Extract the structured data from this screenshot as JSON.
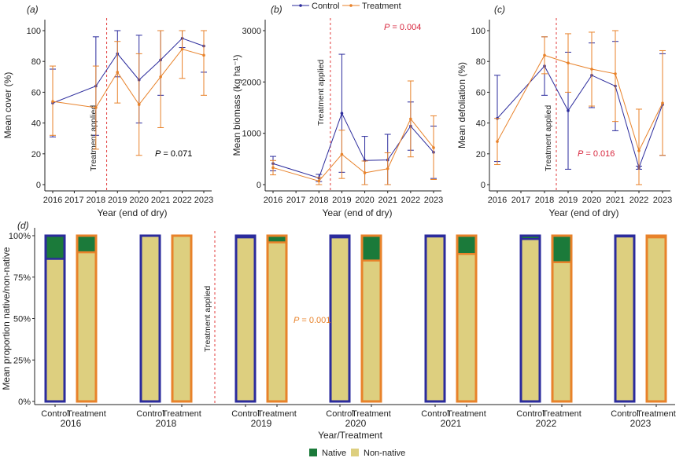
{
  "colors": {
    "control": "#2b2b9c",
    "treatment": "#e8822a",
    "significance": "#d7263d",
    "treatment_line": "#e23b3b",
    "native": "#1b7a3a",
    "nonnative": "#ddcf7f",
    "axis": "#222222"
  },
  "legend": {
    "control": "Control",
    "treatment": "Treatment"
  },
  "treatment_applied_label": "Treatment applied",
  "chart_data": [
    {
      "panel": "(a)",
      "type": "line",
      "ylabel": "Mean cover (%)",
      "xlabel": "Year (end of dry)",
      "x_ticks": [
        "2016",
        "2017",
        "2018",
        "2019",
        "2020",
        "2021",
        "2022",
        "2023"
      ],
      "y_ticks": [
        "0",
        "20",
        "40",
        "60",
        "80",
        "100"
      ],
      "ylim": [
        0,
        100
      ],
      "treatment_applied_year": 2018.5,
      "p_value": "= 0.071",
      "p_color": "black",
      "series": [
        {
          "name": "Control",
          "x": [
            2016,
            2018,
            2019,
            2020,
            2021,
            2022,
            2023
          ],
          "values": [
            53,
            64,
            85,
            68,
            81,
            95,
            90
          ],
          "err_low": [
            31,
            32,
            70,
            40,
            58,
            89,
            73
          ],
          "err_high": [
            75,
            96,
            100,
            97,
            100,
            100,
            100
          ]
        },
        {
          "name": "Treatment",
          "x": [
            2016,
            2018,
            2019,
            2020,
            2021,
            2022,
            2023
          ],
          "values": [
            54,
            50,
            73,
            52,
            70,
            88,
            84
          ],
          "err_low": [
            32,
            23,
            53,
            19,
            37,
            69,
            58
          ],
          "err_high": [
            77,
            77,
            93,
            85,
            100,
            100,
            100
          ]
        }
      ]
    },
    {
      "panel": "(b)",
      "type": "line",
      "ylabel": "Mean biomass (kg ha⁻¹)",
      "xlabel": "Year (end of dry)",
      "x_ticks": [
        "2016",
        "2017",
        "2018",
        "2019",
        "2020",
        "2021",
        "2022",
        "2023"
      ],
      "y_ticks": [
        "0",
        "1000",
        "2000",
        "3000"
      ],
      "ylim": [
        0,
        3000
      ],
      "treatment_applied_year": 2018.5,
      "p_value": "= 0.004",
      "p_color": "red",
      "series": [
        {
          "name": "Control",
          "x": [
            2016,
            2018,
            2019,
            2020,
            2021,
            2022,
            2023
          ],
          "values": [
            410,
            130,
            1390,
            470,
            480,
            1140,
            630
          ],
          "err_low": [
            270,
            60,
            240,
            0,
            0,
            670,
            120
          ],
          "err_high": [
            550,
            200,
            2540,
            940,
            980,
            1610,
            1140
          ]
        },
        {
          "name": "Treatment",
          "x": [
            2016,
            2018,
            2019,
            2020,
            2021,
            2022,
            2023
          ],
          "values": [
            330,
            70,
            590,
            230,
            310,
            1280,
            720
          ],
          "err_low": [
            190,
            0,
            120,
            0,
            0,
            540,
            100
          ],
          "err_high": [
            470,
            140,
            1060,
            460,
            620,
            2020,
            1340
          ]
        }
      ]
    },
    {
      "panel": "(c)",
      "type": "line",
      "ylabel": "Mean defoliation (%)",
      "xlabel": "Year (end of dry)",
      "x_ticks": [
        "2016",
        "2017",
        "2018",
        "2019",
        "2020",
        "2021",
        "2022",
        "2023"
      ],
      "y_ticks": [
        "0",
        "20",
        "40",
        "60",
        "80",
        "100"
      ],
      "ylim": [
        0,
        100
      ],
      "treatment_applied_year": 2018.5,
      "p_value": "= 0.016",
      "p_color": "red",
      "series": [
        {
          "name": "Control",
          "x": [
            2016,
            2018,
            2019,
            2020,
            2021,
            2022,
            2023
          ],
          "values": [
            43,
            77,
            48,
            71,
            64,
            11,
            52
          ],
          "err_low": [
            15,
            58,
            10,
            50,
            35,
            10,
            19
          ],
          "err_high": [
            71,
            96,
            86,
            92,
            93,
            12,
            85
          ]
        },
        {
          "name": "Treatment",
          "x": [
            2016,
            2018,
            2019,
            2020,
            2021,
            2022,
            2023
          ],
          "values": [
            28,
            84,
            79,
            75,
            72,
            22,
            53
          ],
          "err_low": [
            13,
            72,
            60,
            51,
            41,
            0,
            19
          ],
          "err_high": [
            43,
            96,
            98,
            99,
            100,
            49,
            87
          ]
        }
      ]
    },
    {
      "panel": "(d)",
      "type": "bar",
      "stacked": true,
      "ylabel": "Mean proportion native/non-native",
      "xlabel": "Year/Treatment",
      "y_ticks": [
        "0%",
        "25%",
        "50%",
        "75%",
        "100%"
      ],
      "ylim": [
        0,
        100
      ],
      "p_value": "= 0.001",
      "p_color": "orange",
      "legend": [
        "Native",
        "Non-native"
      ],
      "groups": [
        {
          "year": "2016",
          "bars": [
            {
              "label": "Control",
              "native": 14
            },
            {
              "label": "Treatment",
              "native": 10
            }
          ]
        },
        {
          "year": "2018",
          "bars": [
            {
              "label": "Control",
              "native": 0
            },
            {
              "label": "Treatment",
              "native": 0
            }
          ]
        },
        {
          "year": "2019",
          "bars": [
            {
              "label": "Control",
              "native": 1
            },
            {
              "label": "Treatment",
              "native": 4
            }
          ]
        },
        {
          "year": "2020",
          "bars": [
            {
              "label": "Control",
              "native": 1
            },
            {
              "label": "Treatment",
              "native": 15
            }
          ]
        },
        {
          "year": "2021",
          "bars": [
            {
              "label": "Control",
              "native": 0.5
            },
            {
              "label": "Treatment",
              "native": 11
            }
          ]
        },
        {
          "year": "2022",
          "bars": [
            {
              "label": "Control",
              "native": 2
            },
            {
              "label": "Treatment",
              "native": 16
            }
          ]
        },
        {
          "year": "2023",
          "bars": [
            {
              "label": "Control",
              "native": 0.5
            },
            {
              "label": "Treatment",
              "native": 1
            }
          ]
        }
      ]
    }
  ]
}
